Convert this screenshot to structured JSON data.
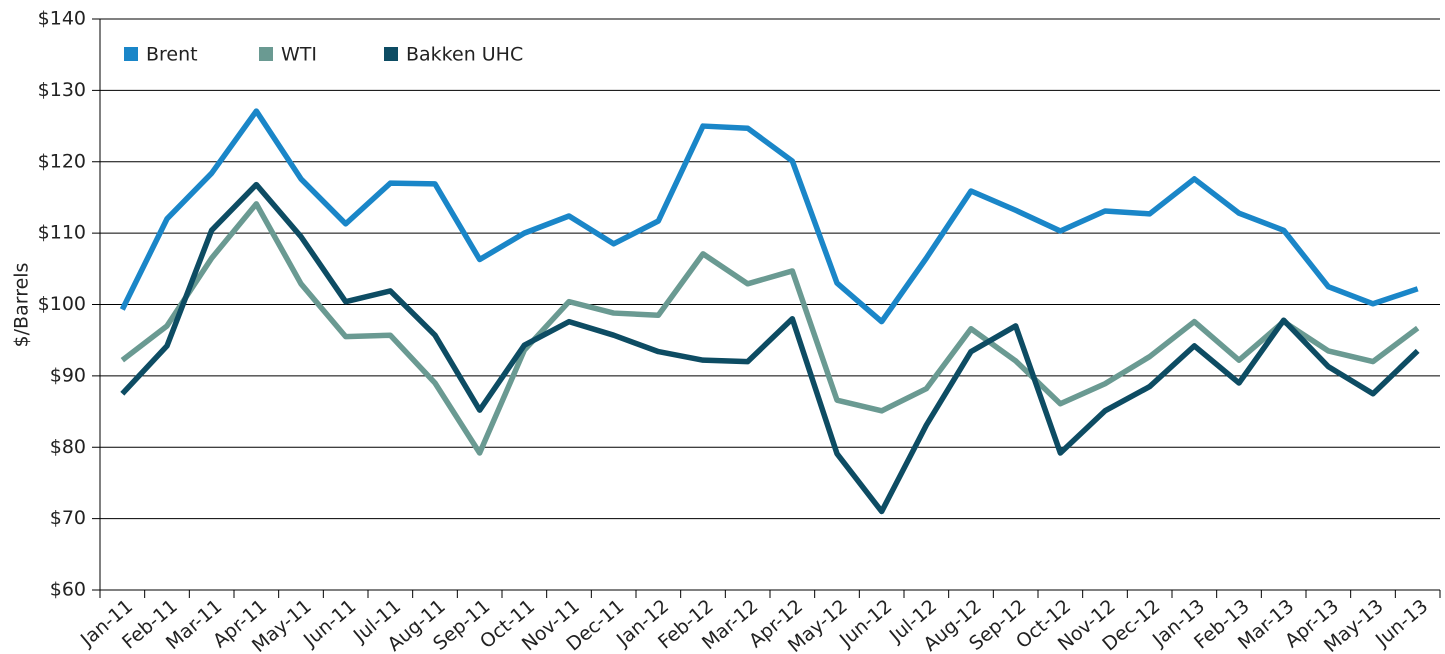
{
  "chart_data": {
    "type": "line",
    "y_label": "$/Barrels",
    "categories": [
      "Jan-11",
      "Feb-11",
      "Mar-11",
      "Apr-11",
      "May-11",
      "Jun-11",
      "Jul-11",
      "Aug-11",
      "Sep-11",
      "Oct-11",
      "Nov-11",
      "Dec-11",
      "Jan-12",
      "Feb-12",
      "Mar-12",
      "Apr-12",
      "May-12",
      "Jun-12",
      "Jul-12",
      "Aug-12",
      "Sep-12",
      "Oct-12",
      "Nov-12",
      "Dec-12",
      "Jan-13",
      "Feb-13",
      "Mar-13",
      "Apr-13",
      "May-13",
      "Jun-13"
    ],
    "series": [
      {
        "name": "Brent",
        "color": "#1a86c8",
        "values": [
          99.3,
          112,
          118.4,
          127.1,
          117.6,
          111.3,
          117.0,
          116.9,
          106.3,
          110.0,
          112.4,
          108.5,
          111.7,
          125.0,
          124.7,
          120.1,
          103.0,
          97.6,
          106.5,
          115.9,
          113.2,
          110.3,
          113.1,
          112.7,
          117.6,
          112.8,
          110.4,
          102.5,
          100.1,
          102.2
        ]
      },
      {
        "name": "WTI",
        "color": "#6a9a92",
        "values": [
          92.2,
          97.0,
          106.5,
          114.1,
          102.9,
          95.5,
          95.7,
          89.0,
          79.2,
          93.6,
          100.4,
          98.8,
          98.5,
          107.1,
          102.9,
          104.7,
          86.6,
          85.1,
          88.2,
          96.6,
          92.1,
          86.1,
          88.9,
          92.7,
          97.6,
          92.2,
          97.6,
          93.5,
          92.0,
          96.7
        ]
      },
      {
        "name": "Bakken UHC",
        "color": "#0d4c63",
        "values": [
          87.5,
          94.2,
          110.4,
          116.8,
          109.5,
          100.4,
          101.9,
          95.7,
          85.2,
          94.3,
          97.6,
          95.7,
          93.4,
          92.2,
          92.0,
          98.0,
          79.1,
          71.0,
          83.1,
          93.4,
          97.0,
          79.2,
          85.1,
          88.5,
          94.2,
          89.0,
          97.8,
          91.3,
          87.5,
          93.5
        ]
      }
    ],
    "ylim": [
      60,
      140
    ],
    "yticks": [
      {
        "value": 60,
        "label": "$60"
      },
      {
        "value": 70,
        "label": "$70"
      },
      {
        "value": 80,
        "label": "$80"
      },
      {
        "value": 90,
        "label": "$90"
      },
      {
        "value": 100,
        "label": "$100"
      },
      {
        "value": 110,
        "label": "$110"
      },
      {
        "value": 120,
        "label": "$120"
      },
      {
        "value": 130,
        "label": "$130"
      },
      {
        "value": 140,
        "label": "$140"
      }
    ],
    "grid": true,
    "legend": "top-left"
  }
}
